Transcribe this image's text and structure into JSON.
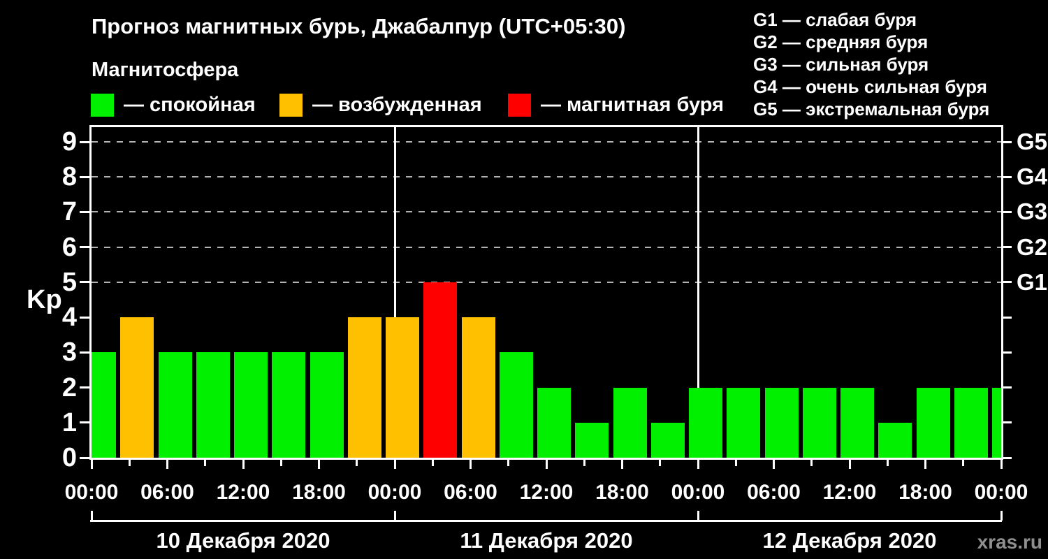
{
  "title": "Прогноз магнитных бурь, Джабалпур (UTC+05:30)",
  "subtitle": "Магнитосфера",
  "legend": {
    "items": [
      {
        "name": "quiet",
        "label": "— спокойная",
        "color": "#00f000"
      },
      {
        "name": "active",
        "label": "— возбужденная",
        "color": "#ffc000"
      },
      {
        "name": "storm",
        "label": "— магнитная буря",
        "color": "#ff0000"
      }
    ]
  },
  "g_legend": [
    "G1 — слабая буря",
    "G2 — средняя буря",
    "G3 — сильная буря",
    "G4 — очень сильная буря",
    "G5 — экстремальная буря"
  ],
  "watermark": "xras.ru",
  "colors": {
    "background": "#000000",
    "axis": "#ffffff",
    "grid_dash": "#b3b3b3",
    "quiet": "#00f000",
    "active": "#ffc000",
    "storm": "#ff0000",
    "watermark": "#8f8f8f"
  },
  "chart_data": {
    "type": "bar",
    "title": "Прогноз магнитных бурь, Джабалпур (UTC+05:30)",
    "ylabel": "Kp",
    "ylim": [
      0,
      9
    ],
    "yticks": [
      0,
      1,
      2,
      3,
      4,
      5,
      6,
      7,
      8,
      9
    ],
    "dashed_grid_levels": [
      5,
      6,
      7,
      8,
      9
    ],
    "right_axis_labels": [
      {
        "label": "G1",
        "kp": 5
      },
      {
        "label": "G2",
        "kp": 6
      },
      {
        "label": "G3",
        "kp": 7
      },
      {
        "label": "G4",
        "kp": 8
      },
      {
        "label": "G5",
        "kp": 9
      }
    ],
    "bar_interval_hours": 3,
    "x_time_labels": [
      "00:00",
      "06:00",
      "12:00",
      "18:00",
      "00:00",
      "06:00",
      "12:00",
      "18:00",
      "00:00",
      "06:00",
      "12:00",
      "18:00",
      "00:00"
    ],
    "days": [
      {
        "date": "10 Декабря 2020",
        "kp": [
          3,
          4,
          3,
          3,
          3,
          3,
          3,
          4
        ]
      },
      {
        "date": "11 Декабря 2020",
        "kp": [
          4,
          5,
          4,
          3,
          2,
          1,
          2,
          1
        ]
      },
      {
        "date": "12 Декабря 2020",
        "kp": [
          2,
          2,
          2,
          2,
          2,
          1,
          2,
          2
        ]
      }
    ],
    "next_day_partial_kp": 2,
    "color_rules": {
      "quiet_max_kp": 3,
      "storm_min_kp": 5
    },
    "legend_position": "top",
    "grid": "dashed horizontal at storm levels only"
  }
}
